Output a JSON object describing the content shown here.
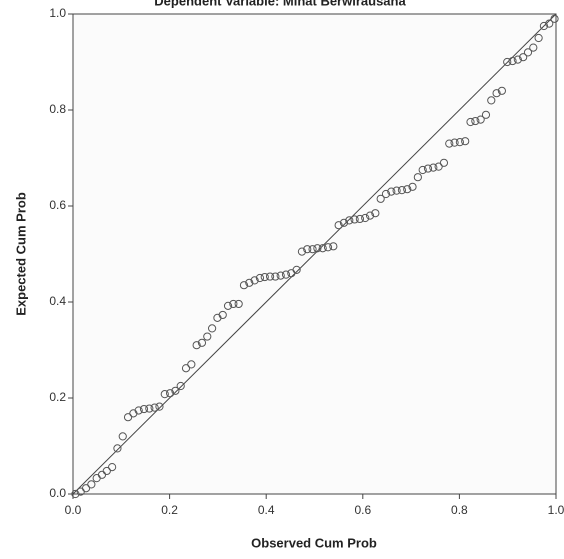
{
  "chart_data": {
    "type": "scatter",
    "subtitle": "Dependent Variable: Minat Berwirausaha",
    "x_label": "Observed Cum Prob",
    "y_label": "Expected Cum Prob",
    "reference_line": true,
    "color": "#555555",
    "xlim": [
      0,
      1
    ],
    "ylim": [
      0,
      1
    ],
    "xticks": [
      {
        "value": 0,
        "label": "0.0"
      },
      {
        "value": 0.2,
        "label": "0.2"
      },
      {
        "value": 0.4,
        "label": "0.4"
      },
      {
        "value": 0.6,
        "label": "0.6"
      },
      {
        "value": 0.8,
        "label": "0.8"
      },
      {
        "value": 1,
        "label": "1.0"
      }
    ],
    "yticks": [
      {
        "value": 0,
        "label": "0.0"
      },
      {
        "value": 0.2,
        "label": "0.2"
      },
      {
        "value": 0.4,
        "label": "0.4"
      },
      {
        "value": 0.6,
        "label": "0.6"
      },
      {
        "value": 0.8,
        "label": "0.8"
      },
      {
        "value": 1,
        "label": "1.0"
      }
    ],
    "x": [
      0.005,
      0.016,
      0.027,
      0.038,
      0.049,
      0.06,
      0.07,
      0.081,
      0.092,
      0.103,
      0.114,
      0.125,
      0.136,
      0.147,
      0.158,
      0.169,
      0.179,
      0.19,
      0.201,
      0.212,
      0.223,
      0.234,
      0.245,
      0.256,
      0.267,
      0.278,
      0.288,
      0.299,
      0.31,
      0.321,
      0.332,
      0.343,
      0.354,
      0.365,
      0.376,
      0.387,
      0.397,
      0.408,
      0.419,
      0.43,
      0.441,
      0.452,
      0.463,
      0.474,
      0.485,
      0.496,
      0.506,
      0.517,
      0.528,
      0.539,
      0.55,
      0.561,
      0.572,
      0.583,
      0.594,
      0.605,
      0.615,
      0.626,
      0.637,
      0.648,
      0.659,
      0.67,
      0.681,
      0.692,
      0.703,
      0.714,
      0.724,
      0.735,
      0.746,
      0.757,
      0.768,
      0.779,
      0.79,
      0.801,
      0.812,
      0.823,
      0.833,
      0.844,
      0.855,
      0.866,
      0.877,
      0.888,
      0.899,
      0.91,
      0.921,
      0.932,
      0.942,
      0.953,
      0.964,
      0.975,
      0.986,
      0.997
    ],
    "values": [
      0.0,
      0.005,
      0.012,
      0.02,
      0.033,
      0.04,
      0.048,
      0.056,
      0.095,
      0.12,
      0.16,
      0.168,
      0.174,
      0.177,
      0.178,
      0.18,
      0.182,
      0.208,
      0.21,
      0.215,
      0.225,
      0.262,
      0.27,
      0.31,
      0.315,
      0.328,
      0.345,
      0.367,
      0.373,
      0.392,
      0.396,
      0.396,
      0.435,
      0.44,
      0.445,
      0.45,
      0.452,
      0.453,
      0.453,
      0.455,
      0.457,
      0.46,
      0.467,
      0.505,
      0.51,
      0.51,
      0.512,
      0.512,
      0.514,
      0.516,
      0.56,
      0.565,
      0.57,
      0.572,
      0.573,
      0.575,
      0.58,
      0.585,
      0.615,
      0.625,
      0.63,
      0.632,
      0.633,
      0.635,
      0.64,
      0.66,
      0.675,
      0.678,
      0.68,
      0.682,
      0.69,
      0.73,
      0.732,
      0.733,
      0.735,
      0.775,
      0.777,
      0.78,
      0.79,
      0.82,
      0.835,
      0.84,
      0.9,
      0.902,
      0.905,
      0.91,
      0.92,
      0.93,
      0.95,
      0.975,
      0.98,
      0.99
    ]
  }
}
